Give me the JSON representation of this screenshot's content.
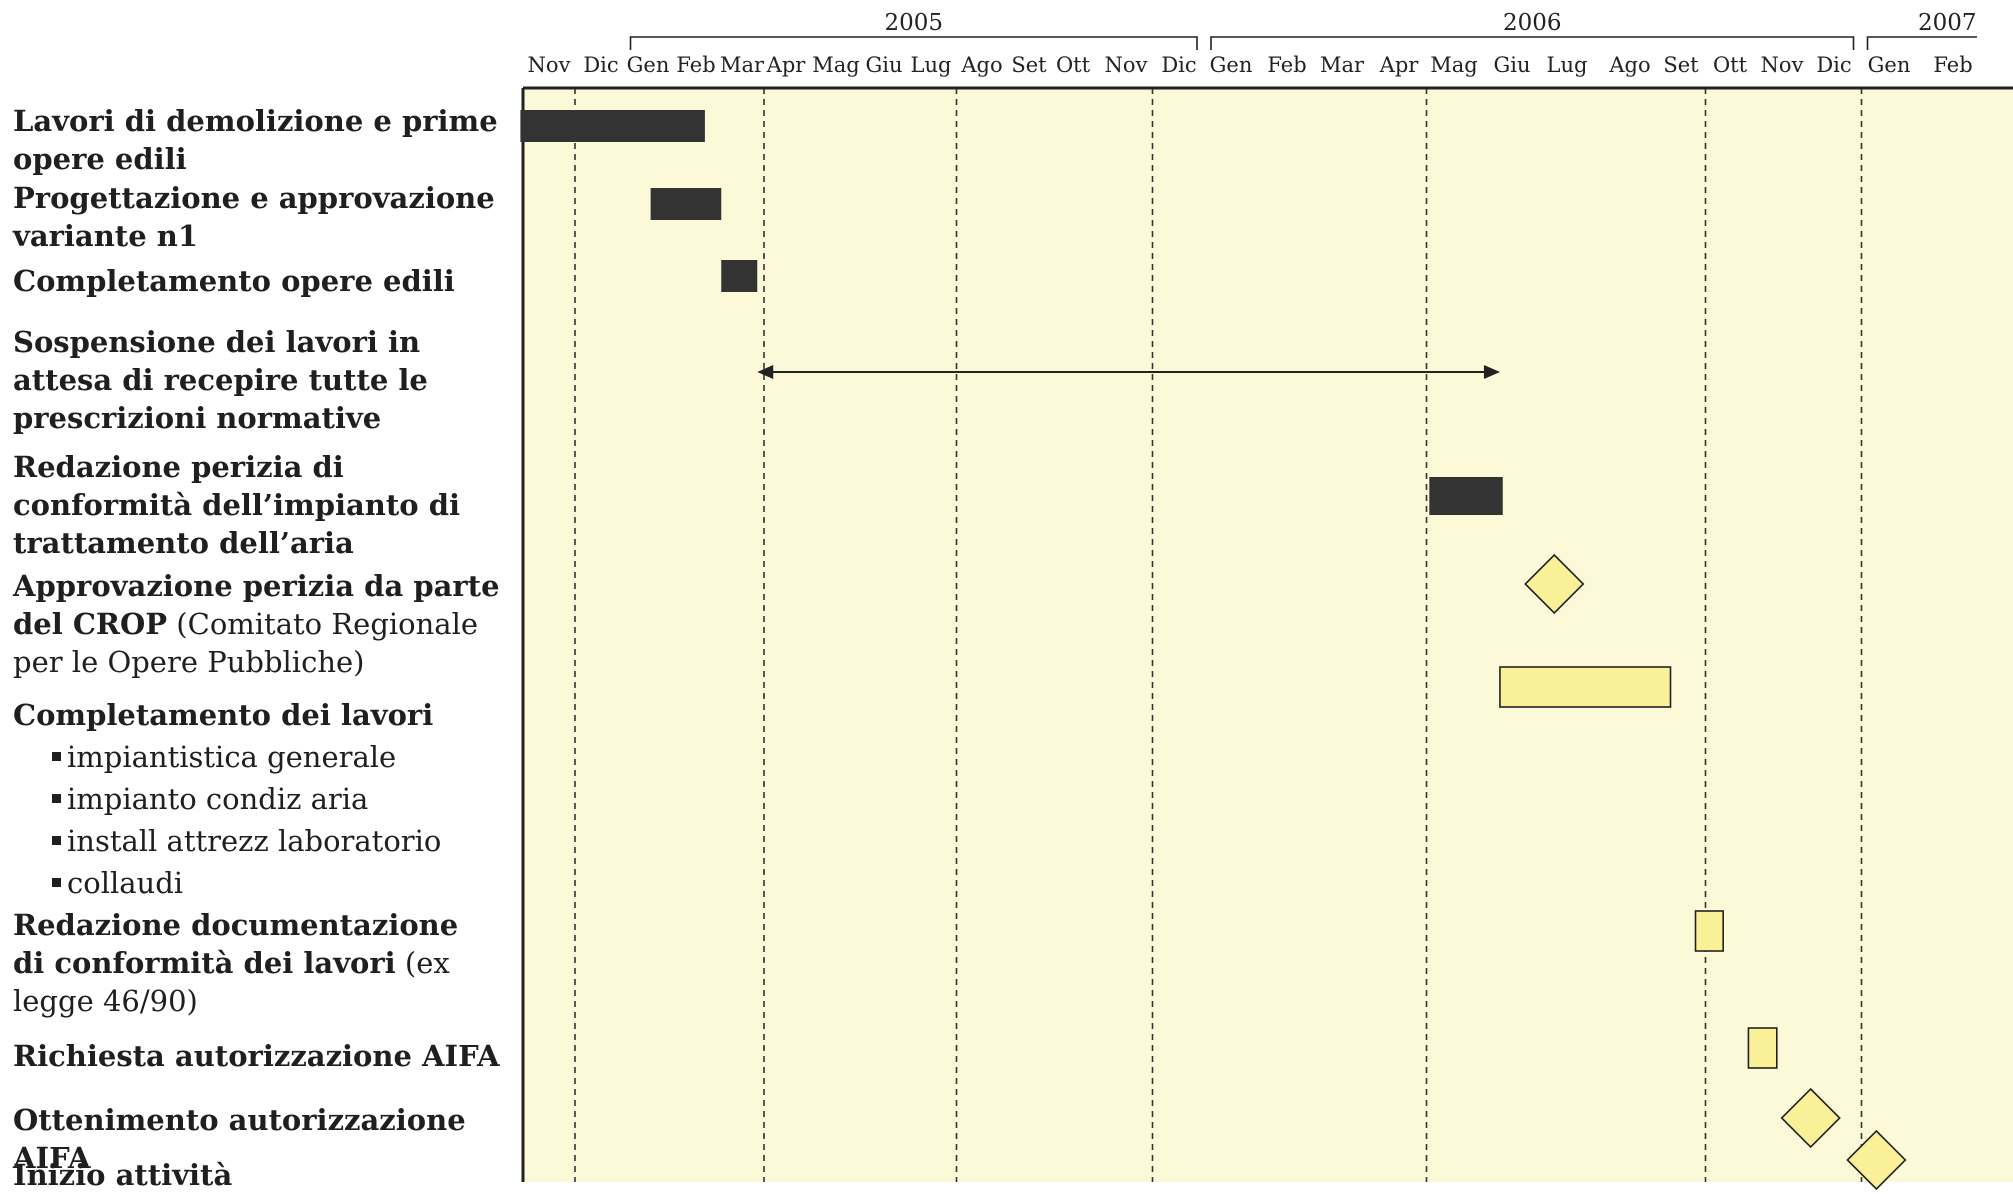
{
  "timeline": {
    "years": [
      {
        "label": "2005",
        "start": "2005-01",
        "end": "2005-12"
      },
      {
        "label": "2006",
        "start": "2006-01",
        "end": "2006-12"
      },
      {
        "label": "2007",
        "start": "2007-01",
        "end": "2007-02"
      }
    ],
    "months": [
      "Nov",
      "Dic",
      "Gen",
      "Feb",
      "Mar",
      "Apr",
      "Mag",
      "Giu",
      "Lug",
      "Ago",
      "Set",
      "Ott",
      "Nov",
      "Dic",
      "Gen",
      "Feb",
      "Mar",
      "Apr",
      "Mag",
      "Giu",
      "Lug",
      "Ago",
      "Set",
      "Ott",
      "Nov",
      "Dic",
      "Gen",
      "Feb"
    ],
    "guide_months": [
      1,
      5,
      9,
      13,
      18,
      23,
      26
    ]
  },
  "tasks": [
    {
      "bold": "Lavori di demolizione e prime opere edili",
      "rest": "",
      "mark": "bar",
      "style": "dark",
      "start": -0.05,
      "end": 3.7
    },
    {
      "bold": "Progettazione e approvazione variante n1",
      "rest": "",
      "mark": "bar",
      "style": "dark",
      "start": 2.55,
      "end": 4.05
    },
    {
      "bold": "Completamento opere edili",
      "rest": "",
      "mark": "bar",
      "style": "dark",
      "start": 4.05,
      "end": 4.85
    },
    {
      "bold": "Sospensione dei lavori in attesa di recepire tutte le prescrizioni normative",
      "rest": "",
      "mark": "arrow",
      "style": "none",
      "start": 4.85,
      "end": 19.3
    },
    {
      "bold": "Redazione perizia di conformità dell’impianto di trattamento dell’aria",
      "rest": "",
      "mark": "bar",
      "style": "dark",
      "start": 18.05,
      "end": 19.35
    },
    {
      "bold": "Approvazione perizia da parte del CROP",
      "rest": " (Comitato Regionale per le Opere Pubbliche)",
      "mark": "milestone",
      "style": "yellow",
      "at": 20.25
    },
    {
      "bold": "Completamento dei lavori",
      "rest": "",
      "mark": "bar",
      "style": "yellow",
      "start": 19.3,
      "end": 22.3
    },
    {
      "bold": "Redazione documentazione di conformità dei lavori",
      "rest": " (ex legge 46/90)",
      "mark": "bar",
      "style": "yellow",
      "start": 22.8,
      "end": 23.35
    },
    {
      "bold": "Richiesta autorizzazione AIFA",
      "rest": "",
      "mark": "bar",
      "style": "yellow",
      "start": 23.85,
      "end": 24.4
    },
    {
      "bold": "Ottenimento autorizzazione AIFA",
      "rest": "",
      "mark": "milestone",
      "style": "yellow",
      "at": 25.05
    },
    {
      "bold": "Inizio attività",
      "rest": "",
      "mark": "milestone",
      "style": "yellow",
      "at": 26.25
    }
  ],
  "subtasks": [
    "impiantistica generale",
    "impianto condiz aria",
    "install attrezz laboratorio",
    "collaudi"
  ],
  "colors": {
    "panel": "#fcf9d9",
    "dark": "#333333",
    "yellow": "#f9f098",
    "guide": "#333333"
  }
}
